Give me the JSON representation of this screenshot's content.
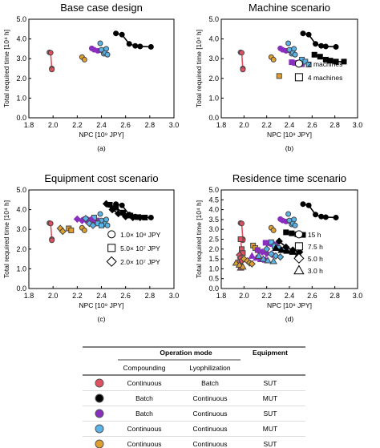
{
  "colors": {
    "continuous_batch_sut": "#e05060",
    "batch_continuous_mut": "#000000",
    "batch_continuous_sut": "#8a2ec0",
    "continuous_continuous_mut": "#5ab4e8",
    "continuous_continuous_sut": "#e0a030"
  },
  "chart_data": [
    {
      "type": "scatter",
      "title": "Base case design",
      "panel_label": "(a)",
      "xlabel": "NPC [10⁹ JPY]",
      "ylabel": "Total required time [10⁴ h]",
      "xlim": [
        1.8,
        3.0
      ],
      "ylim": [
        0.0,
        5.0
      ],
      "xticks": [
        "1.8",
        "2.0",
        "2.2",
        "2.4",
        "2.6",
        "2.8",
        "3.0"
      ],
      "yticks": [
        "0.0",
        "1.0",
        "2.0",
        "3.0",
        "4.0",
        "5.0"
      ],
      "series": [
        {
          "color": "#e05060",
          "marker": "circle",
          "connected": true,
          "x": [
            1.97,
            1.98,
            1.99,
            1.99
          ],
          "y": [
            3.32,
            3.3,
            2.5,
            2.45
          ]
        },
        {
          "color": "#000000",
          "marker": "circle",
          "connected": true,
          "x": [
            2.52,
            2.57,
            2.63,
            2.68,
            2.72,
            2.81
          ],
          "y": [
            4.28,
            4.22,
            3.75,
            3.65,
            3.62,
            3.6
          ]
        },
        {
          "color": "#8a2ec0",
          "marker": "circle",
          "connected": true,
          "x": [
            2.32,
            2.34,
            2.37,
            2.4,
            2.43
          ],
          "y": [
            3.52,
            3.45,
            3.4,
            3.42,
            3.45
          ]
        },
        {
          "color": "#5ab4e8",
          "marker": "circle",
          "connected": false,
          "x": [
            2.39,
            2.4,
            2.42,
            2.43,
            2.44,
            2.45
          ],
          "y": [
            3.78,
            3.45,
            3.25,
            3.3,
            3.5,
            3.2
          ]
        },
        {
          "color": "#e0a030",
          "marker": "circle",
          "connected": false,
          "x": [
            2.24,
            2.26
          ],
          "y": [
            3.08,
            2.95
          ]
        }
      ]
    },
    {
      "type": "scatter",
      "title": "Machine scenario",
      "panel_label": "(b)",
      "xlabel": "NPC [10⁹ JPY]",
      "ylabel": "Total required time [10⁴ h]",
      "xlim": [
        1.8,
        3.0
      ],
      "ylim": [
        0.0,
        5.0
      ],
      "xticks": [
        "1.8",
        "2.0",
        "2.2",
        "2.4",
        "2.6",
        "2.8",
        "3.0"
      ],
      "yticks": [
        "0.0",
        "1.0",
        "2.0",
        "3.0",
        "4.0",
        "5.0"
      ],
      "legend": [
        {
          "marker": "circle",
          "label": "2 machines"
        },
        {
          "marker": "square",
          "label": "4 machines"
        }
      ],
      "series": [
        {
          "color": "#e05060",
          "marker": "circle",
          "connected": true,
          "x": [
            1.97,
            1.98,
            1.99,
            1.99
          ],
          "y": [
            3.32,
            3.3,
            2.5,
            2.45
          ]
        },
        {
          "color": "#000000",
          "marker": "circle",
          "connected": true,
          "x": [
            2.52,
            2.57,
            2.63,
            2.68,
            2.72,
            2.81
          ],
          "y": [
            4.28,
            4.22,
            3.75,
            3.65,
            3.62,
            3.6
          ]
        },
        {
          "color": "#8a2ec0",
          "marker": "circle",
          "connected": true,
          "x": [
            2.32,
            2.34,
            2.37,
            2.4,
            2.43
          ],
          "y": [
            3.52,
            3.45,
            3.4,
            3.42,
            3.45
          ]
        },
        {
          "color": "#5ab4e8",
          "marker": "circle",
          "connected": false,
          "x": [
            2.39,
            2.4,
            2.42,
            2.43,
            2.44,
            2.45
          ],
          "y": [
            3.78,
            3.45,
            3.25,
            3.3,
            3.5,
            3.2
          ]
        },
        {
          "color": "#e0a030",
          "marker": "circle",
          "connected": false,
          "x": [
            2.24,
            2.26
          ],
          "y": [
            3.08,
            2.95
          ]
        },
        {
          "color": "#000000",
          "marker": "square",
          "connected": true,
          "x": [
            2.62,
            2.67,
            2.72,
            2.76,
            2.81,
            2.88
          ],
          "y": [
            3.2,
            3.1,
            2.95,
            2.9,
            2.85,
            2.85
          ]
        },
        {
          "color": "#8a2ec0",
          "marker": "square",
          "connected": true,
          "x": [
            2.42,
            2.45,
            2.48,
            2.51
          ],
          "y": [
            2.82,
            2.78,
            2.75,
            2.72
          ]
        },
        {
          "color": "#5ab4e8",
          "marker": "square",
          "connected": false,
          "x": [
            2.51,
            2.54,
            2.57
          ],
          "y": [
            2.95,
            2.85,
            2.7
          ]
        },
        {
          "color": "#e0a030",
          "marker": "square",
          "connected": false,
          "x": [
            2.31
          ],
          "y": [
            2.12
          ]
        }
      ]
    },
    {
      "type": "scatter",
      "title": "Equipment cost scenario",
      "panel_label": "(c)",
      "xlabel": "NPC [10⁹ JPY]",
      "ylabel": "Total required time [10⁴ h]",
      "xlim": [
        1.8,
        3.0
      ],
      "ylim": [
        0.0,
        5.0
      ],
      "xticks": [
        "1.8",
        "2.0",
        "2.2",
        "2.4",
        "2.6",
        "2.8",
        "3.0"
      ],
      "yticks": [
        "0.0",
        "1.0",
        "2.0",
        "3.0",
        "4.0",
        "5.0"
      ],
      "legend": [
        {
          "marker": "circle",
          "label": "1.0× 10⁸ JPY"
        },
        {
          "marker": "square",
          "label": "5.0× 10⁷ JPY"
        },
        {
          "marker": "diamond",
          "label": "2.0× 10⁷ JPY"
        }
      ],
      "series": [
        {
          "color": "#e05060",
          "marker": "circle",
          "connected": true,
          "x": [
            1.97,
            1.98,
            1.99,
            1.99
          ],
          "y": [
            3.32,
            3.3,
            2.5,
            2.45
          ]
        },
        {
          "color": "#000000",
          "marker": "circle",
          "connected": true,
          "x": [
            2.52,
            2.57,
            2.63,
            2.68,
            2.72,
            2.81
          ],
          "y": [
            4.28,
            4.22,
            3.75,
            3.65,
            3.62,
            3.6
          ]
        },
        {
          "color": "#8a2ec0",
          "marker": "circle",
          "connected": true,
          "x": [
            2.32,
            2.34,
            2.37,
            2.4,
            2.43
          ],
          "y": [
            3.52,
            3.45,
            3.4,
            3.42,
            3.45
          ]
        },
        {
          "color": "#5ab4e8",
          "marker": "circle",
          "connected": false,
          "x": [
            2.39,
            2.4,
            2.42,
            2.43,
            2.44,
            2.45
          ],
          "y": [
            3.78,
            3.45,
            3.25,
            3.3,
            3.5,
            3.2
          ]
        },
        {
          "color": "#e0a030",
          "marker": "circle",
          "connected": false,
          "x": [
            2.24,
            2.26
          ],
          "y": [
            3.08,
            2.95
          ]
        },
        {
          "color": "#000000",
          "marker": "square",
          "connected": true,
          "x": [
            2.47,
            2.52,
            2.58,
            2.64,
            2.7,
            2.76
          ],
          "y": [
            4.25,
            4.1,
            3.85,
            3.7,
            3.62,
            3.6
          ]
        },
        {
          "color": "#8a2ec0",
          "marker": "square",
          "connected": true,
          "x": [
            2.27,
            2.3,
            2.33,
            2.36
          ],
          "y": [
            3.52,
            3.47,
            3.42,
            3.45
          ]
        },
        {
          "color": "#5ab4e8",
          "marker": "square",
          "connected": false,
          "x": [
            2.34,
            2.37,
            2.4
          ],
          "y": [
            3.6,
            3.3,
            3.2
          ]
        },
        {
          "color": "#e0a030",
          "marker": "square",
          "connected": false,
          "x": [
            2.13,
            2.15
          ],
          "y": [
            3.05,
            2.95
          ]
        },
        {
          "color": "#000000",
          "marker": "diamond",
          "connected": true,
          "x": [
            2.44,
            2.49,
            2.54,
            2.6,
            2.66,
            2.72
          ],
          "y": [
            4.3,
            4.0,
            3.8,
            3.65,
            3.6,
            3.6
          ]
        },
        {
          "color": "#8a2ec0",
          "marker": "diamond",
          "connected": true,
          "x": [
            2.2,
            2.24,
            2.28,
            2.32
          ],
          "y": [
            3.52,
            3.45,
            3.42,
            3.45
          ]
        },
        {
          "color": "#5ab4e8",
          "marker": "diamond",
          "connected": false,
          "x": [
            2.27,
            2.3,
            2.33
          ],
          "y": [
            3.55,
            3.3,
            3.2
          ]
        },
        {
          "color": "#e0a030",
          "marker": "diamond",
          "connected": false,
          "x": [
            2.06,
            2.08
          ],
          "y": [
            3.05,
            2.9
          ]
        }
      ]
    },
    {
      "type": "scatter",
      "title": "Residence time scenario",
      "panel_label": "(d)",
      "xlabel": "NPC [10⁹ JPY]",
      "ylabel": "Total required time [10⁴ h]",
      "xlim": [
        1.8,
        3.0
      ],
      "ylim": [
        0.0,
        5.0
      ],
      "xticks": [
        "1.8",
        "2.0",
        "2.2",
        "2.4",
        "2.6",
        "2.8",
        "3.0"
      ],
      "yticks": [
        "0.0",
        "0.5",
        "1.0",
        "1.5",
        "2.0",
        "2.5",
        "3.0",
        "3.5",
        "4.0",
        "4.5",
        "5.0"
      ],
      "legend": [
        {
          "marker": "circle",
          "label": "15 h"
        },
        {
          "marker": "square",
          "label": "7.5 h"
        },
        {
          "marker": "diamond",
          "label": "5.0 h"
        },
        {
          "marker": "triangle",
          "label": "3.0 h"
        }
      ],
      "series": [
        {
          "color": "#e05060",
          "marker": "circle",
          "connected": true,
          "x": [
            1.97,
            1.98,
            1.99,
            1.99
          ],
          "y": [
            3.32,
            3.3,
            2.5,
            2.45
          ]
        },
        {
          "color": "#000000",
          "marker": "circle",
          "connected": true,
          "x": [
            2.52,
            2.57,
            2.63,
            2.68,
            2.72,
            2.81
          ],
          "y": [
            4.28,
            4.22,
            3.75,
            3.65,
            3.62,
            3.6
          ]
        },
        {
          "color": "#8a2ec0",
          "marker": "circle",
          "connected": true,
          "x": [
            2.32,
            2.34,
            2.37,
            2.4,
            2.43
          ],
          "y": [
            3.52,
            3.45,
            3.4,
            3.42,
            3.45
          ]
        },
        {
          "color": "#5ab4e8",
          "marker": "circle",
          "connected": false,
          "x": [
            2.39,
            2.4,
            2.42,
            2.43,
            2.44,
            2.45
          ],
          "y": [
            3.78,
            3.45,
            3.25,
            3.3,
            3.5,
            3.2
          ]
        },
        {
          "color": "#e0a030",
          "marker": "circle",
          "connected": false,
          "x": [
            2.24,
            2.26
          ],
          "y": [
            3.08,
            2.95
          ]
        },
        {
          "color": "#e05060",
          "marker": "square",
          "connected": true,
          "x": [
            1.97,
            1.98,
            1.99
          ],
          "y": [
            2.5,
            2.0,
            1.8
          ]
        },
        {
          "color": "#000000",
          "marker": "square",
          "connected": true,
          "x": [
            2.37,
            2.42,
            2.47,
            2.52
          ],
          "y": [
            2.85,
            2.8,
            2.75,
            2.72
          ]
        },
        {
          "color": "#8a2ec0",
          "marker": "square",
          "connected": true,
          "x": [
            2.19,
            2.22,
            2.25,
            2.28
          ],
          "y": [
            2.32,
            2.3,
            2.25,
            2.22
          ]
        },
        {
          "color": "#5ab4e8",
          "marker": "square",
          "connected": false,
          "x": [
            2.24,
            2.27,
            2.3,
            2.34
          ],
          "y": [
            2.35,
            2.15,
            2.05,
            1.95
          ]
        },
        {
          "color": "#e0a030",
          "marker": "square",
          "connected": false,
          "x": [
            2.08,
            2.1,
            2.12
          ],
          "y": [
            2.18,
            2.05,
            1.95
          ]
        },
        {
          "color": "#e05060",
          "marker": "diamond",
          "connected": true,
          "x": [
            1.96,
            1.97,
            1.98
          ],
          "y": [
            1.7,
            1.55,
            1.4
          ]
        },
        {
          "color": "#000000",
          "marker": "diamond",
          "connected": true,
          "x": [
            2.31,
            2.37,
            2.43,
            2.49
          ],
          "y": [
            2.4,
            2.1,
            1.95,
            1.85
          ]
        },
        {
          "color": "#8a2ec0",
          "marker": "diamond",
          "connected": true,
          "x": [
            2.12,
            2.16,
            2.2,
            2.25
          ],
          "y": [
            1.95,
            1.85,
            1.78,
            1.72
          ]
        },
        {
          "color": "#5ab4e8",
          "marker": "diamond",
          "connected": false,
          "x": [
            2.2,
            2.24,
            2.28,
            2.32
          ],
          "y": [
            2.0,
            1.75,
            1.65,
            1.6
          ]
        },
        {
          "color": "#e0a030",
          "marker": "diamond",
          "connected": false,
          "x": [
            2.0,
            2.03,
            2.05,
            2.07
          ],
          "y": [
            1.5,
            1.4,
            1.3,
            1.25
          ]
        },
        {
          "color": "#e05060",
          "marker": "triangle",
          "connected": true,
          "x": [
            1.95,
            1.96,
            1.97
          ],
          "y": [
            1.35,
            1.2,
            1.05
          ]
        },
        {
          "color": "#000000",
          "marker": "triangle",
          "connected": true,
          "x": [
            2.28,
            2.33,
            2.38,
            2.43,
            2.48
          ],
          "y": [
            2.05,
            1.95,
            1.9,
            1.85,
            1.75
          ]
        },
        {
          "color": "#8a2ec0",
          "marker": "triangle",
          "connected": true,
          "x": [
            2.07,
            2.11,
            2.15,
            2.19
          ],
          "y": [
            1.65,
            1.55,
            1.48,
            1.45
          ]
        },
        {
          "color": "#5ab4e8",
          "marker": "triangle",
          "connected": false,
          "x": [
            2.13,
            2.17,
            2.21,
            2.26
          ],
          "y": [
            1.65,
            1.5,
            1.42,
            1.38
          ]
        },
        {
          "color": "#e0a030",
          "marker": "triangle",
          "connected": false,
          "x": [
            1.93,
            1.96,
            1.99
          ],
          "y": [
            1.3,
            1.2,
            1.1
          ]
        }
      ]
    }
  ],
  "table": {
    "header_group": "Operation mode",
    "header_equipment": "Equipment",
    "sub_compounding": "Compounding",
    "sub_lyophilization": "Lyophilization",
    "rows": [
      {
        "color": "#e05060",
        "compounding": "Continuous",
        "lyophilization": "Batch",
        "equipment": "SUT"
      },
      {
        "color": "#000000",
        "compounding": "Batch",
        "lyophilization": "Continuous",
        "equipment": "MUT"
      },
      {
        "color": "#8a2ec0",
        "compounding": "Batch",
        "lyophilization": "Continuous",
        "equipment": "SUT"
      },
      {
        "color": "#5ab4e8",
        "compounding": "Continuous",
        "lyophilization": "Continuous",
        "equipment": "MUT"
      },
      {
        "color": "#e0a030",
        "compounding": "Continuous",
        "lyophilization": "Continuous",
        "equipment": "SUT"
      }
    ]
  }
}
